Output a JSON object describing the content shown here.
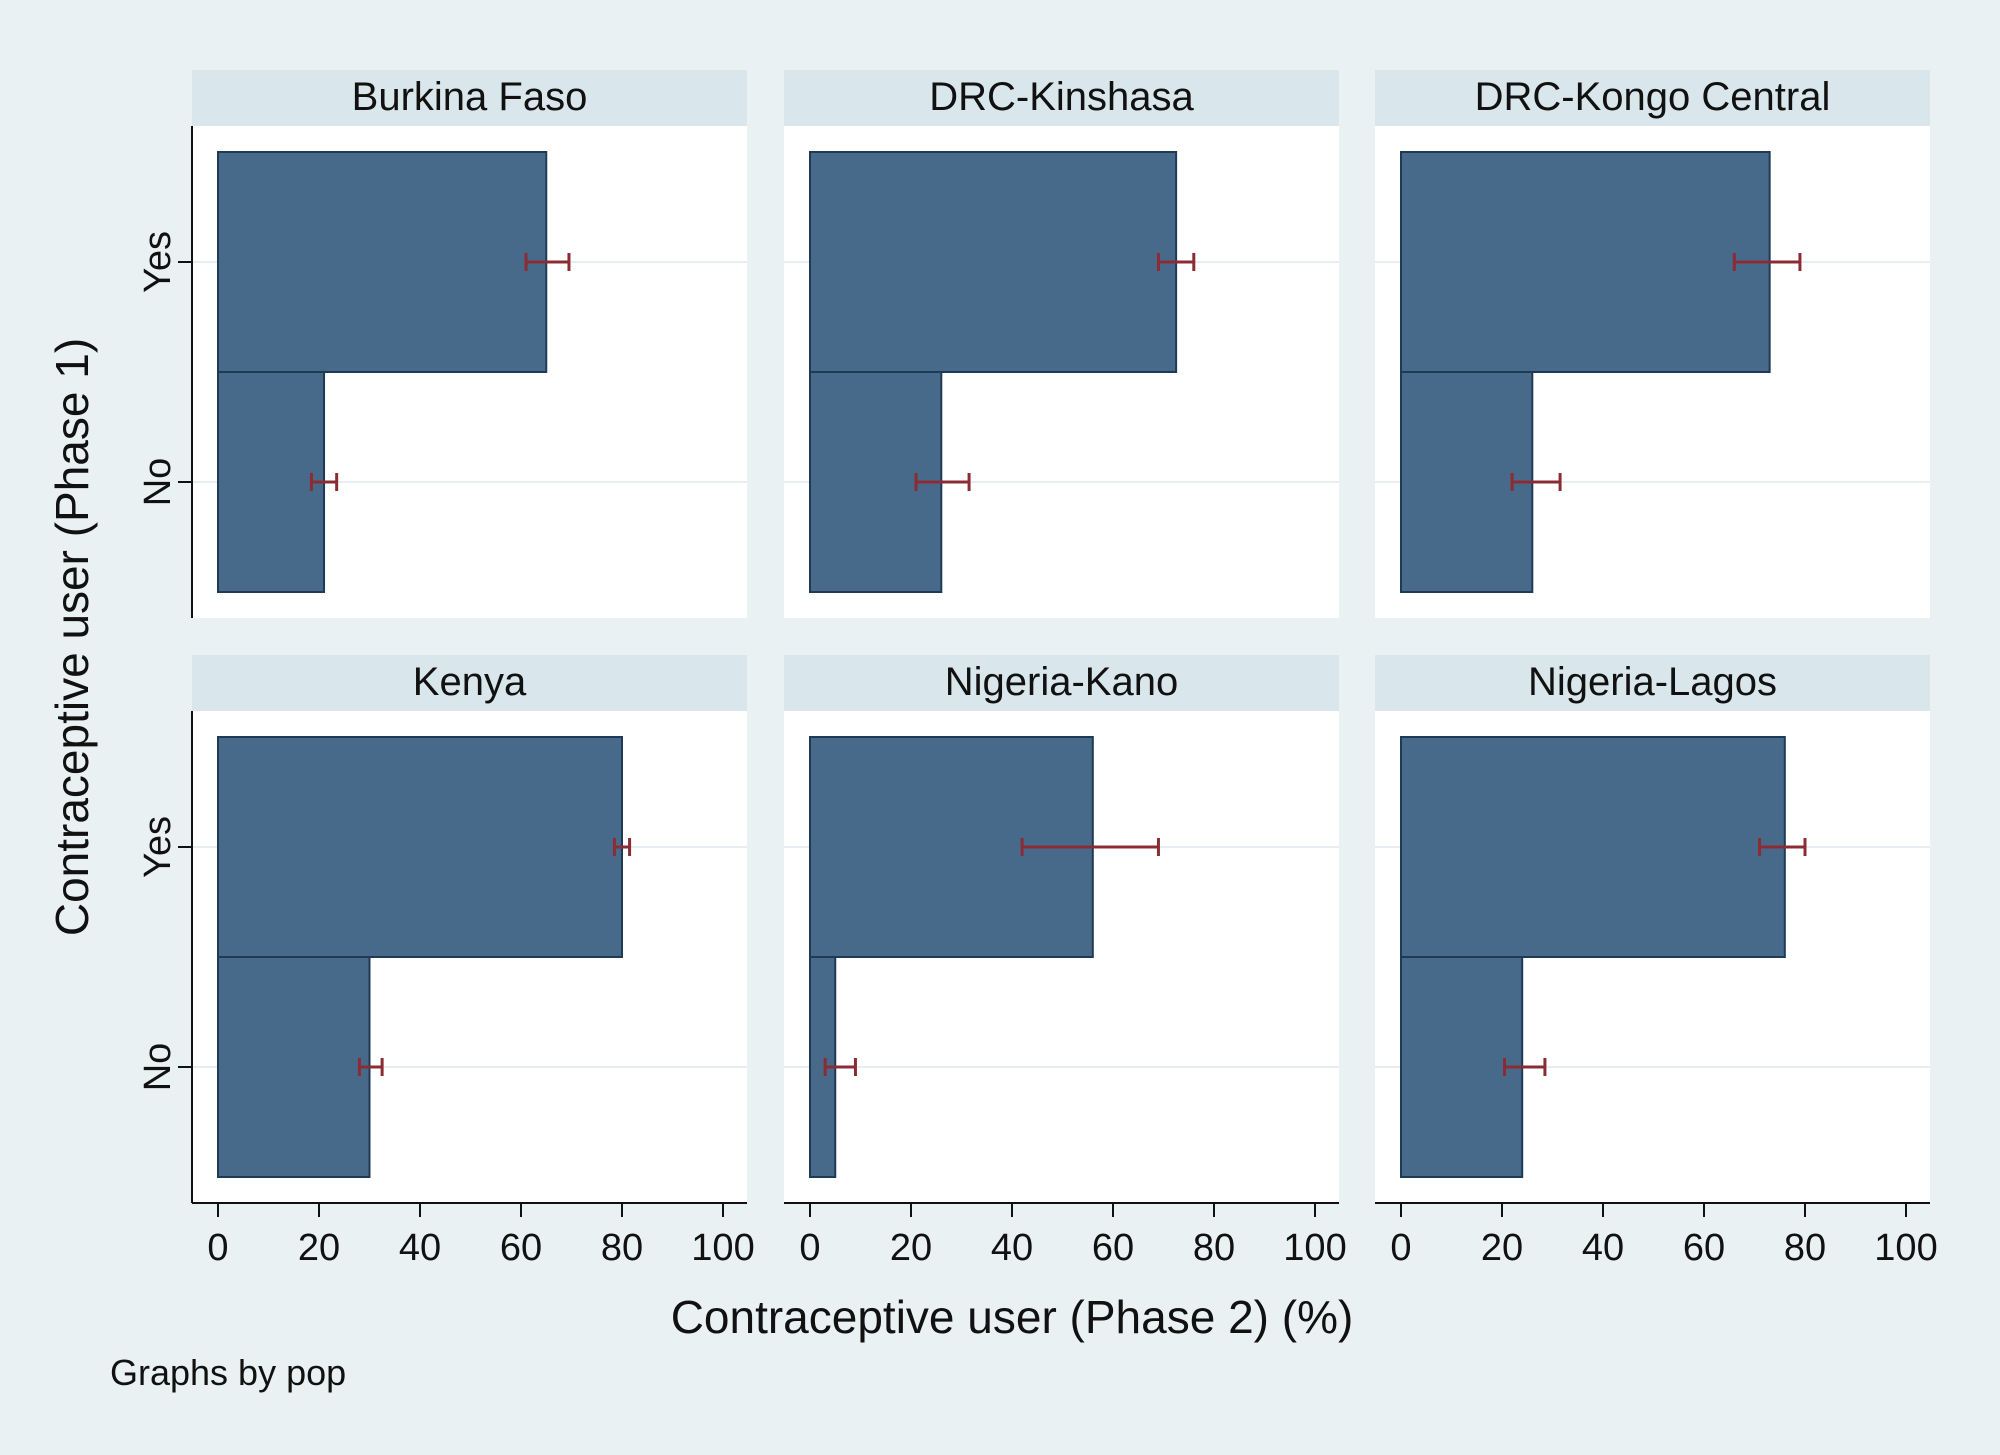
{
  "chart_data": {
    "type": "bar",
    "orientation": "horizontal",
    "xlabel": "Contraceptive user (Phase 2) (%)",
    "ylabel": "Contraceptive user (Phase 1)",
    "categories": [
      "Yes",
      "No"
    ],
    "xlim": [
      0,
      100
    ],
    "xticks": [
      "0",
      "20",
      "40",
      "60",
      "80",
      "100"
    ],
    "note": "Graphs by pop",
    "bar_color": "#486a8a",
    "errorbar_color": "#8b2c35",
    "panels": [
      {
        "title": "Burkina Faso",
        "values": [
          65,
          21
        ],
        "ci": [
          [
            61,
            69.5
          ],
          [
            18.5,
            23.5
          ]
        ]
      },
      {
        "title": "DRC-Kinshasa",
        "values": [
          72.5,
          26
        ],
        "ci": [
          [
            69,
            76
          ],
          [
            21,
            31.5
          ]
        ]
      },
      {
        "title": "DRC-Kongo Central",
        "values": [
          73,
          26
        ],
        "ci": [
          [
            66,
            79
          ],
          [
            22,
            31.5
          ]
        ]
      },
      {
        "title": "Kenya",
        "values": [
          80,
          30
        ],
        "ci": [
          [
            78.5,
            81.5
          ],
          [
            28,
            32.5
          ]
        ]
      },
      {
        "title": "Nigeria-Kano",
        "values": [
          56,
          5
        ],
        "ci": [
          [
            42,
            69
          ],
          [
            3,
            9
          ]
        ]
      },
      {
        "title": "Nigeria-Lagos",
        "values": [
          76,
          24
        ],
        "ci": [
          [
            71,
            80
          ],
          [
            20.5,
            28.5
          ]
        ]
      }
    ]
  }
}
